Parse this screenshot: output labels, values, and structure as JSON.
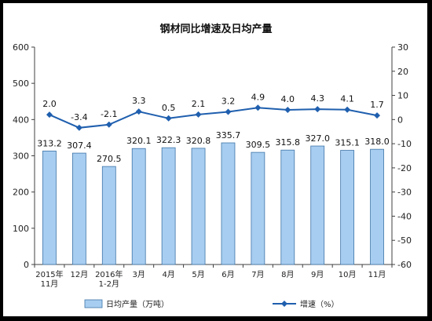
{
  "chart_data": {
    "type": "bar",
    "title": "钢材同比增速及日均产量",
    "categories": [
      "2015年\n11月",
      "12月",
      "2016年\n1-2月",
      "3月",
      "4月",
      "5月",
      "6月",
      "7月",
      "8月",
      "9月",
      "10月",
      "11月"
    ],
    "series": [
      {
        "name": "日均产量（万吨）",
        "type": "bar",
        "axis": "left",
        "values": [
          313.2,
          307.4,
          270.5,
          320.1,
          322.3,
          320.8,
          335.7,
          309.5,
          315.8,
          327.0,
          315.1,
          318.0
        ],
        "labels": [
          "313.2",
          "307.4",
          "270.5",
          "320.1",
          "322.3",
          "320.8",
          "335.7",
          "309.5",
          "315.8",
          "327.0",
          "315.1",
          "318.0"
        ]
      },
      {
        "name": "增速（%）",
        "type": "line",
        "axis": "right",
        "values": [
          2.0,
          -3.4,
          -2.1,
          3.3,
          0.5,
          2.1,
          3.2,
          4.9,
          4.0,
          4.3,
          4.1,
          1.7
        ],
        "labels": [
          "2.0",
          "-3.4",
          "-2.1",
          "3.3",
          "0.5",
          "2.1",
          "3.2",
          "4.9",
          "4.0",
          "4.3",
          "4.1",
          "1.7"
        ]
      }
    ],
    "ylim_left": [
      0,
      600
    ],
    "yticks_left": [
      "0",
      "100",
      "200",
      "300",
      "400",
      "500",
      "600"
    ],
    "ylim_right": [
      -60,
      30
    ],
    "yticks_right": [
      "-60",
      "-50",
      "-40",
      "-30",
      "-20",
      "-10",
      "0",
      "10",
      "20",
      "30"
    ],
    "legend_position": "bottom",
    "grid": false,
    "colors": {
      "bar_fill": "#a7cdf0",
      "bar_stroke": "#3f75a8",
      "line": "#1f5fae",
      "axis": "#404040"
    }
  }
}
